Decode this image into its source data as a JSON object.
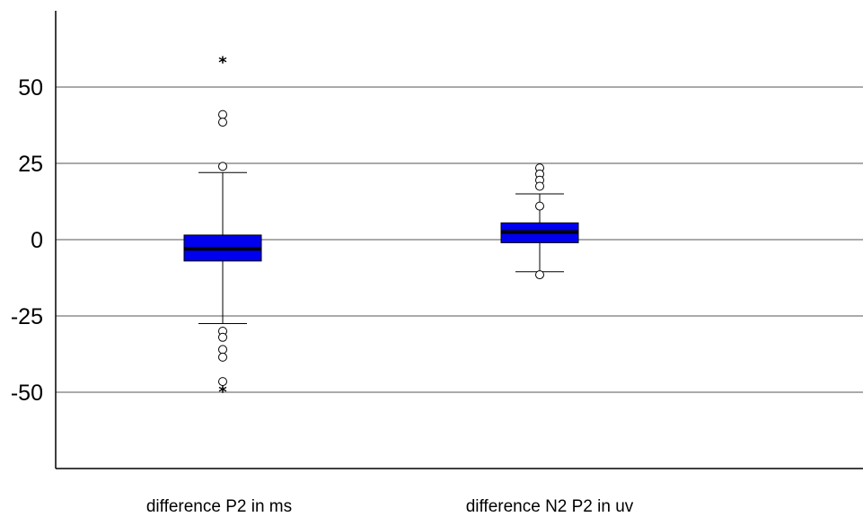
{
  "chart_data": {
    "type": "boxplot",
    "title": "",
    "xlabel": "",
    "ylabel": "",
    "ylim": [
      -75,
      75
    ],
    "yticks": [
      50,
      25,
      0,
      -25,
      -50
    ],
    "grid": true,
    "box_color": "#0000ee",
    "median_color": "#000000",
    "categories": [
      "difference P2 in ms",
      "difference N2 P2 in uv"
    ],
    "boxes": [
      {
        "whisker_low": -27.5,
        "q1": -7,
        "median": -3,
        "q3": 1.5,
        "whisker_high": 22,
        "outliers": [
          41,
          38.5,
          24,
          -30,
          -32,
          -36,
          -38.5,
          -46.5
        ],
        "extremes": [
          59,
          -49
        ]
      },
      {
        "whisker_low": -10.5,
        "q1": -1,
        "median": 2.5,
        "q3": 5.5,
        "whisker_high": 15,
        "outliers": [
          23.5,
          21.5,
          19.5,
          17.5,
          11,
          -11.5
        ],
        "extremes": []
      }
    ]
  }
}
